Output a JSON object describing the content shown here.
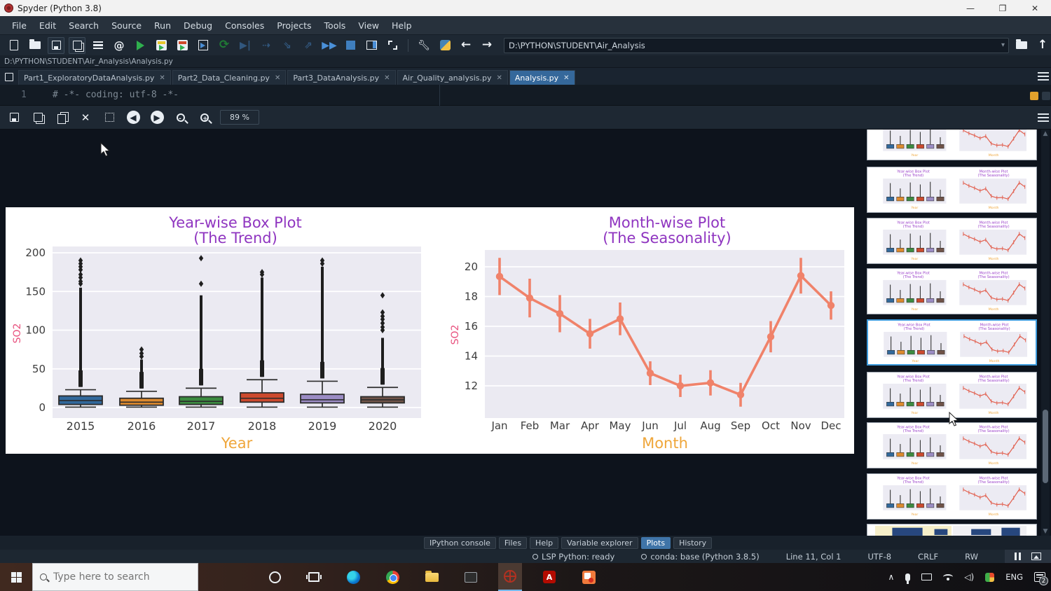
{
  "window": {
    "title": "Spyder (Python 3.8)"
  },
  "menu": {
    "items": [
      "File",
      "Edit",
      "Search",
      "Source",
      "Run",
      "Debug",
      "Consoles",
      "Projects",
      "Tools",
      "View",
      "Help"
    ]
  },
  "toolbar": {
    "path_value": "D:\\PYTHON\\STUDENT\\Air_Analysis"
  },
  "breadcrumb": "D:\\PYTHON\\STUDENT\\Air_Analysis\\Analysis.py",
  "editor": {
    "tabs": [
      {
        "label": "Part1_ExploratoryDataAnalysis.py",
        "active": false
      },
      {
        "label": "Part2_Data_Cleaning.py",
        "active": false
      },
      {
        "label": "Part3_DataAnalysis.py",
        "active": false
      },
      {
        "label": "Air_Quality_analysis.py",
        "active": false
      },
      {
        "label": "Analysis.py",
        "active": true
      }
    ],
    "line_number": "1",
    "code_line": "# -*- coding: utf-8 -*-"
  },
  "plots_toolbar": {
    "zoom_level": "89 %"
  },
  "chart_data": [
    {
      "type": "box",
      "title": "Year-wise Box Plot",
      "subtitle": "(The Trend)",
      "xlabel": "Year",
      "ylabel": "SO2",
      "categories": [
        "2015",
        "2016",
        "2017",
        "2018",
        "2019",
        "2020"
      ],
      "yticks": [
        0,
        50,
        100,
        150,
        200
      ],
      "ylim": [
        -13,
        208
      ],
      "grid": true,
      "box_colors": [
        "#32699c",
        "#dd8a2e",
        "#3c8b40",
        "#cc4a2e",
        "#9b8cc4",
        "#6f5348"
      ],
      "boxes": [
        {
          "year": "2015",
          "whisker_low": 0.5,
          "q1": 4,
          "median": 9,
          "q3": 15,
          "whisker_high": 23,
          "outliers_dense_to": 155,
          "outliers_sparse": [
            160,
            163,
            168,
            172,
            178,
            182,
            186,
            190
          ]
        },
        {
          "year": "2016",
          "whisker_low": 0.5,
          "q1": 3,
          "median": 7,
          "q3": 12,
          "whisker_high": 21,
          "outliers_dense_to": 62,
          "outliers_sparse": [
            66,
            70,
            75
          ]
        },
        {
          "year": "2017",
          "whisker_low": 0.5,
          "q1": 4,
          "median": 8,
          "q3": 14,
          "whisker_high": 25,
          "outliers_dense_to": 145,
          "outliers_sparse": [
            160,
            193
          ]
        },
        {
          "year": "2018",
          "whisker_low": 0.5,
          "q1": 7,
          "median": 12,
          "q3": 19,
          "whisker_high": 36,
          "outliers_dense_to": 168,
          "outliers_sparse": [
            172,
            175
          ]
        },
        {
          "year": "2019",
          "whisker_low": 0.5,
          "q1": 6,
          "median": 10,
          "q3": 17,
          "whisker_high": 34,
          "outliers_dense_to": 182,
          "outliers_sparse": [
            186,
            190
          ]
        },
        {
          "year": "2020",
          "whisker_low": 0.5,
          "q1": 6,
          "median": 10,
          "q3": 14,
          "whisker_high": 26,
          "outliers_dense_to": 90,
          "outliers_sparse": [
            100,
            104,
            109,
            114,
            118,
            123,
            145
          ]
        }
      ],
      "title_color": "#8f35c0",
      "ylabel_color": "#e8517e",
      "xlabel_color": "#efa63a"
    },
    {
      "type": "line",
      "title": "Month-wise Plot",
      "subtitle": "(The Seasonality)",
      "xlabel": "Month",
      "ylabel": "SO2",
      "categories": [
        "Jan",
        "Feb",
        "Mar",
        "Apr",
        "May",
        "Jun",
        "Jul",
        "Aug",
        "Sep",
        "Oct",
        "Nov",
        "Dec"
      ],
      "values": [
        19.35,
        17.9,
        16.85,
        15.5,
        16.5,
        12.85,
        12.0,
        12.2,
        11.4,
        15.3,
        19.4,
        17.4
      ],
      "errors": [
        1.25,
        1.3,
        1.25,
        1.0,
        1.1,
        0.8,
        0.75,
        0.85,
        0.8,
        1.05,
        1.2,
        0.95
      ],
      "yticks": [
        12,
        14,
        16,
        18,
        20
      ],
      "ylim": [
        9.8,
        21.1
      ],
      "grid": true,
      "line_color": "#f0826a",
      "title_color": "#8f35c0",
      "ylabel_color": "#e8517e",
      "xlabel_color": "#efa63a"
    }
  ],
  "sidebar": {
    "thumbnail_count": 9,
    "selected_index": 4
  },
  "bottom_tabs": {
    "items": [
      "IPython console",
      "Files",
      "Help",
      "Variable explorer",
      "Plots",
      "History"
    ],
    "active": "Plots"
  },
  "statusbar": {
    "lsp": "LSP Python: ready",
    "conda": "conda: base (Python 3.8.5)",
    "cursor": "Line 11, Col 1",
    "encoding": "UTF-8",
    "eol": "CRLF",
    "permissions": "RW"
  },
  "taskbar": {
    "search_placeholder": "Type here to search",
    "language": "ENG",
    "notification_count": "2"
  }
}
